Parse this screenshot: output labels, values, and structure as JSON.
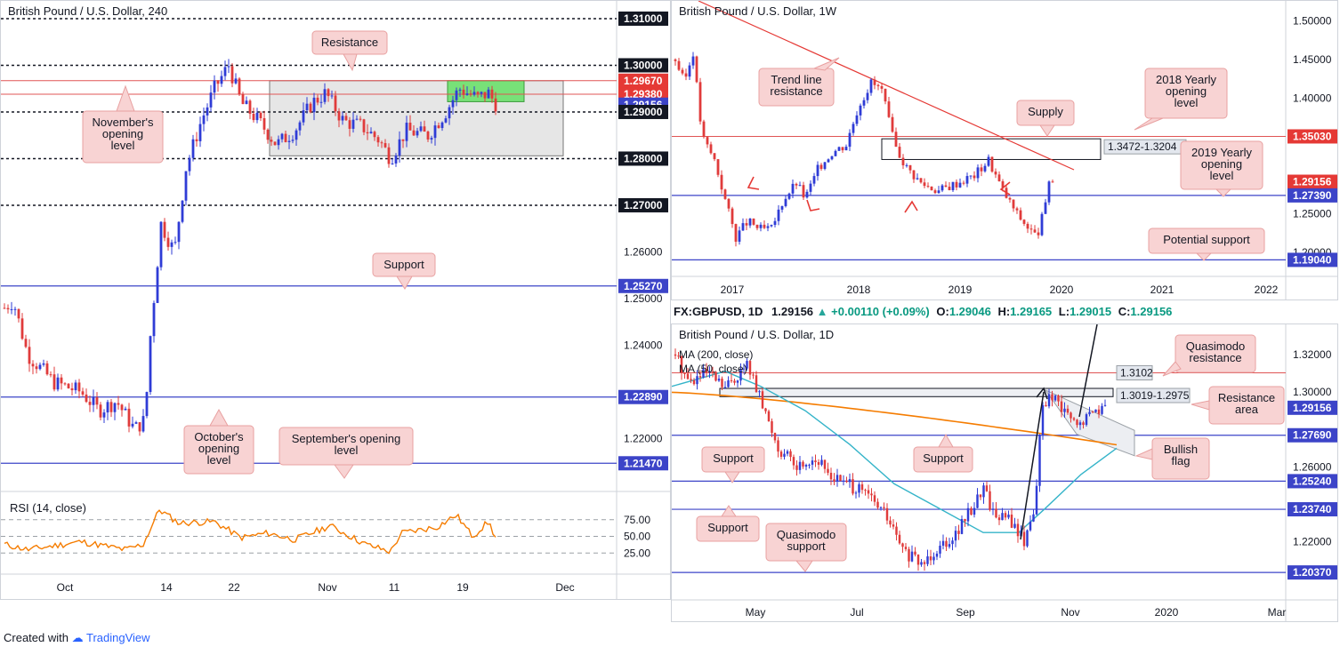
{
  "footer": {
    "created_with": "Created with",
    "brand": "TradingView"
  },
  "ohlc_bar": {
    "symbol": "FX:GBPUSD, 1D",
    "price": "1.29156",
    "change": "+0.00110 (+0.09%)",
    "o_label": "O:",
    "o": "1.29046",
    "h_label": "H:",
    "h": "1.29165",
    "l_label": "L:",
    "l": "1.29015",
    "c_label": "C:",
    "c": "1.29156"
  },
  "colors": {
    "up": "#2f3cd6",
    "down": "#e03b3b",
    "support_line": "#3c44c8",
    "resistance_line": "#e05555",
    "callout_bg": "#f8d3d3",
    "callout_border": "#e8a0a0",
    "zone_grey": "#dcdcdc",
    "zone_green": "#5ce05c",
    "ma200": "#f57c00",
    "ma50": "#35b4c9",
    "rsi": "#f57c00"
  },
  "chart_data": [
    {
      "id": "h4",
      "type": "candlestick",
      "title": "British Pound / U.S. Dollar, 240",
      "ylim": [
        1.2098,
        1.3119
      ],
      "x_ticks": [
        "Oct",
        "14",
        "22",
        "Nov",
        "11",
        "19",
        "Dec"
      ],
      "price_labels": [
        {
          "value": 1.31,
          "text": "1.31000",
          "style": "black"
        },
        {
          "value": 1.3,
          "text": "1.30000",
          "style": "black"
        },
        {
          "value": 1.2967,
          "text": "1.29670",
          "style": "red"
        },
        {
          "value": 1.2938,
          "text": "1.29380",
          "style": "red"
        },
        {
          "value": 1.29156,
          "text": "1.29156",
          "style": "blue"
        },
        {
          "value": 1.29,
          "text": "1.29000",
          "style": "black"
        },
        {
          "value": 1.28,
          "text": "1.28000",
          "style": "black"
        },
        {
          "value": 1.27,
          "text": "1.27000",
          "style": "black"
        },
        {
          "value": 1.26,
          "text": "1.26000",
          "style": "plain"
        },
        {
          "value": 1.2527,
          "text": "1.25270",
          "style": "blue"
        },
        {
          "value": 1.25,
          "text": "1.25000",
          "style": "plain"
        },
        {
          "value": 1.24,
          "text": "1.24000",
          "style": "plain"
        },
        {
          "value": 1.2289,
          "text": "1.22890",
          "style": "blue"
        },
        {
          "value": 1.22,
          "text": "1.22000",
          "style": "plain"
        },
        {
          "value": 1.2147,
          "text": "1.21470",
          "style": "blue"
        }
      ],
      "annotations": [
        "Resistance",
        "November's opening level",
        "Support",
        "October's opening level",
        "September's opening level"
      ],
      "zones": [
        {
          "name": "grey-range-zone",
          "y": [
            1.2967,
            1.2806
          ]
        },
        {
          "name": "green-resistance-zone",
          "y": [
            1.2967,
            1.2922
          ]
        }
      ],
      "rsi": {
        "label": "RSI (14, close)",
        "levels": [
          "75.00",
          "50.00",
          "25.00"
        ],
        "last": 48
      }
    },
    {
      "id": "weekly",
      "type": "candlestick",
      "title": "British Pound / U.S. Dollar, 1W",
      "ylim": [
        1.1736,
        1.5166
      ],
      "x_ticks": [
        "2017",
        "2018",
        "2019",
        "2020",
        "2021",
        "2022"
      ],
      "price_labels": [
        {
          "value": 1.5,
          "text": "1.50000",
          "style": "plain"
        },
        {
          "value": 1.45,
          "text": "1.45000",
          "style": "plain"
        },
        {
          "value": 1.4,
          "text": "1.40000",
          "style": "plain"
        },
        {
          "value": 1.3503,
          "text": "1.35030",
          "style": "red"
        },
        {
          "value": 1.29156,
          "text": "1.29156",
          "style": "red"
        },
        {
          "value": 1.2739,
          "text": "1.27390",
          "style": "blue"
        },
        {
          "value": 1.25,
          "text": "1.25000",
          "style": "plain"
        },
        {
          "value": 1.2,
          "text": "1.20000",
          "style": "plain"
        },
        {
          "value": 1.1904,
          "text": "1.19040",
          "style": "blue"
        }
      ],
      "annotations": [
        "Trend line resistance",
        "Supply",
        "2018 Yearly opening level",
        "2019 Yearly opening level",
        "Potential support"
      ],
      "supply_zone": {
        "label": "1.3472-1.3204",
        "y": [
          1.3472,
          1.3204
        ]
      }
    },
    {
      "id": "daily",
      "type": "candlestick",
      "title": "British Pound / U.S. Dollar, 1D",
      "ylim": [
        1.1938,
        1.3332
      ],
      "x_ticks": [
        "May",
        "Jul",
        "Sep",
        "Nov",
        "2020",
        "Mar"
      ],
      "indicators": [
        "MA (200, close)",
        "MA (50, close)"
      ],
      "price_labels": [
        {
          "value": 1.32,
          "text": "1.32000",
          "style": "plain"
        },
        {
          "value": 1.3,
          "text": "1.30000",
          "style": "plain"
        },
        {
          "value": 1.29156,
          "text": "1.29156",
          "style": "blue"
        },
        {
          "value": 1.2769,
          "text": "1.27690",
          "style": "blue"
        },
        {
          "value": 1.26,
          "text": "1.26000",
          "style": "plain"
        },
        {
          "value": 1.2524,
          "text": "1.25240",
          "style": "blue"
        },
        {
          "value": 1.2374,
          "text": "1.23740",
          "style": "blue"
        },
        {
          "value": 1.22,
          "text": "1.22000",
          "style": "plain"
        },
        {
          "value": 1.2037,
          "text": "1.20370",
          "style": "blue"
        }
      ],
      "annotations": [
        "Quasimodo resistance",
        "Resistance area",
        "Bullish flag",
        "Support",
        "Support",
        "Support",
        "Quasimodo support"
      ],
      "boxes": [
        {
          "label": "1.3102",
          "value": 1.3102
        },
        {
          "label": "1.3019-1.2975",
          "y": [
            1.3019,
            1.2975
          ]
        }
      ]
    }
  ]
}
